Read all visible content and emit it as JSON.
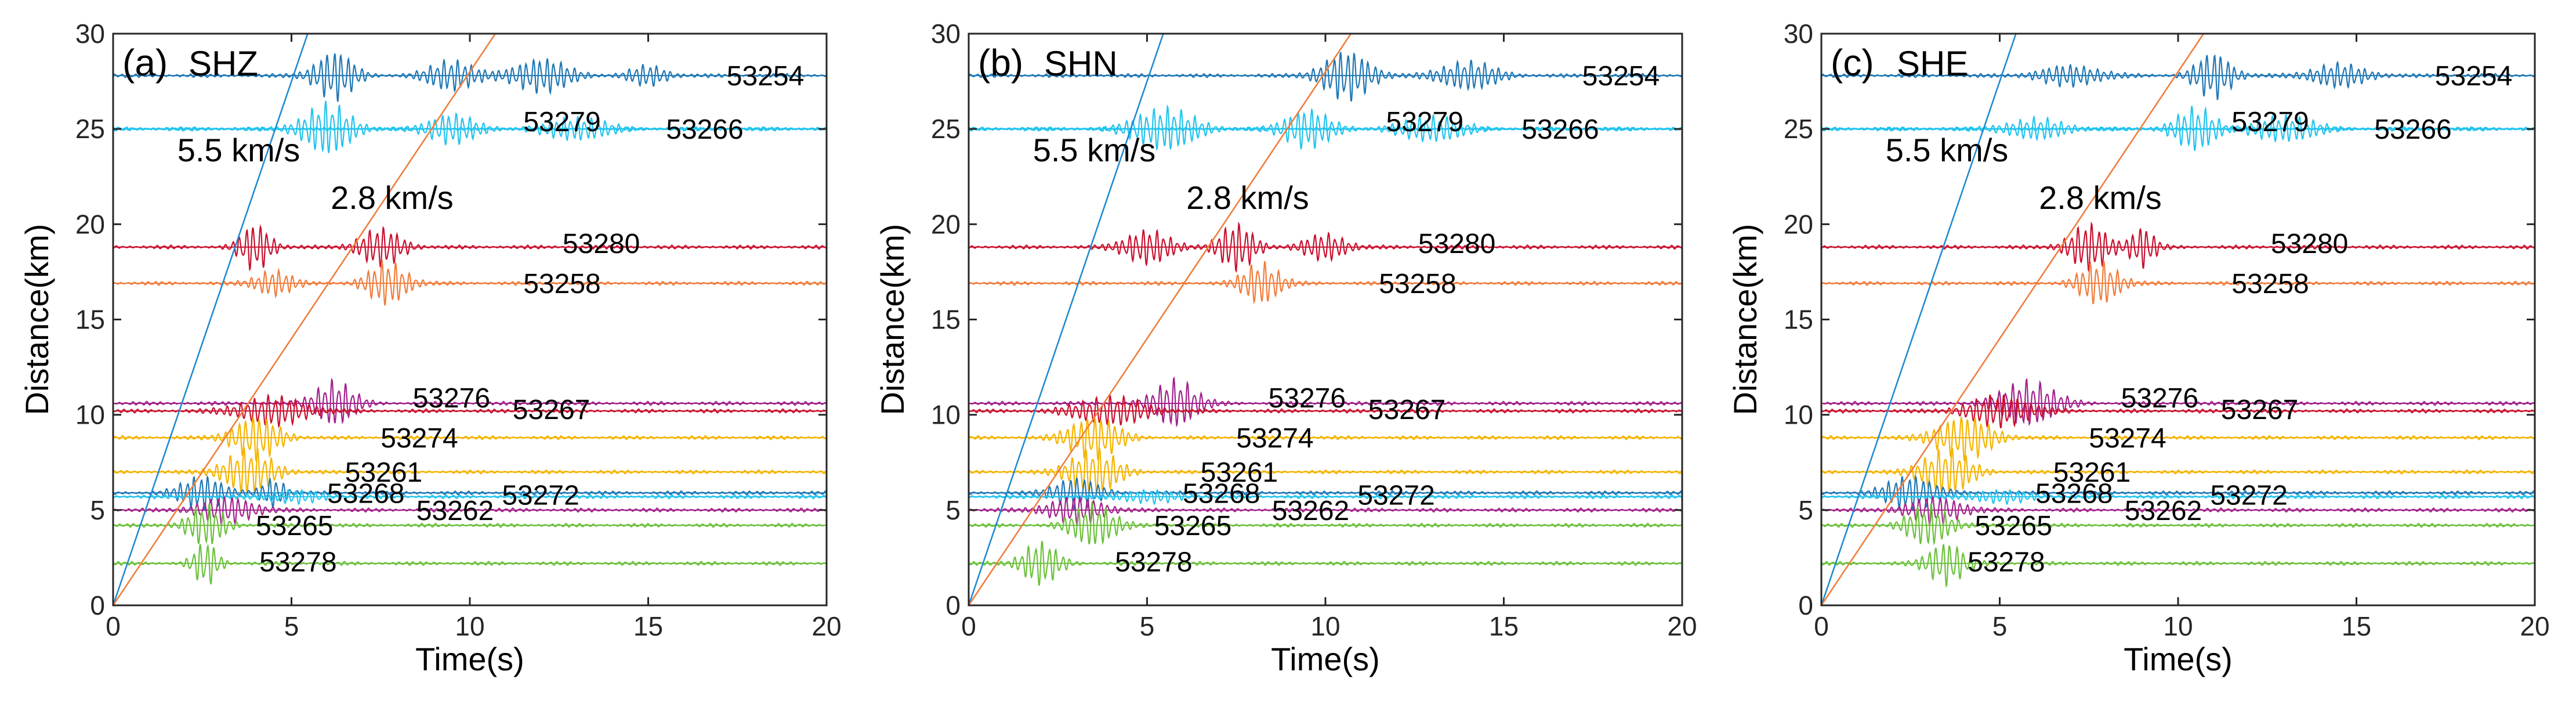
{
  "figure": {
    "colors": {
      "blue": "#1f77b4",
      "cyan": "#23c4ee",
      "crimson": "#c8102e",
      "orange": "#f07d3c",
      "purple": "#a2218c",
      "yellow": "#f4b400",
      "green": "#6cc03c",
      "line_p": "#1f8bd0",
      "line_s": "#f07d3c",
      "axis": "#262626"
    }
  },
  "chart_data": [
    {
      "type": "line",
      "panel_label": "(a)",
      "component": "SHZ",
      "xlabel": "Time(s)",
      "ylabel": "Distance(km)",
      "xlim": [
        0,
        20
      ],
      "ylim": [
        0,
        30
      ],
      "xticks": [
        "0",
        "5",
        "10",
        "15",
        "20"
      ],
      "yticks": [
        "0",
        "5",
        "10",
        "15",
        "20",
        "25",
        "30"
      ],
      "velocity_lines": [
        {
          "label": "5.5 km/s",
          "velocity_km_s": 5.5,
          "color": "line_p"
        },
        {
          "label": "2.8 km/s",
          "velocity_km_s": 2.8,
          "color": "line_s"
        }
      ],
      "stations": [
        {
          "id": "53254",
          "distance_km": 27.8,
          "color": "blue",
          "label_time_s": 17.2,
          "label_distance_km": 27.8,
          "packets": [
            {
              "t": 6.2,
              "w": 1.3,
              "a": 0.85
            },
            {
              "t": 9.5,
              "w": 1.5,
              "a": 0.55
            },
            {
              "t": 12.0,
              "w": 1.8,
              "a": 0.6
            },
            {
              "t": 15.0,
              "w": 1.2,
              "a": 0.35
            }
          ]
        },
        {
          "id": "53279",
          "distance_km": 25.0,
          "color": "cyan",
          "label_time_s": 11.5,
          "label_distance_km": 25.4,
          "packets": [
            {
              "t": 6.0,
              "w": 1.6,
              "a": 0.9
            },
            {
              "t": 9.5,
              "w": 1.5,
              "a": 0.55
            }
          ]
        },
        {
          "id": "53266",
          "distance_km": 25.0,
          "color": "cyan",
          "label_time_s": 15.5,
          "label_distance_km": 25.0,
          "packets": [
            {
              "t": 13.0,
              "w": 2.0,
              "a": 0.4
            }
          ]
        },
        {
          "id": "53280",
          "distance_km": 18.8,
          "color": "crimson",
          "label_time_s": 12.6,
          "label_distance_km": 19.0,
          "packets": [
            {
              "t": 4.0,
              "w": 1.0,
              "a": 0.8
            },
            {
              "t": 7.5,
              "w": 1.4,
              "a": 0.65
            }
          ]
        },
        {
          "id": "53258",
          "distance_km": 16.9,
          "color": "orange",
          "label_time_s": 11.5,
          "label_distance_km": 16.9,
          "packets": [
            {
              "t": 4.5,
              "w": 1.2,
              "a": 0.45
            },
            {
              "t": 7.7,
              "w": 1.3,
              "a": 0.75
            }
          ]
        },
        {
          "id": "53276",
          "distance_km": 10.6,
          "color": "purple",
          "label_time_s": 8.4,
          "label_distance_km": 10.9,
          "packets": [
            {
              "t": 6.2,
              "w": 1.3,
              "a": 0.8
            }
          ]
        },
        {
          "id": "53267",
          "distance_km": 10.2,
          "color": "crimson",
          "label_time_s": 11.2,
          "label_distance_km": 10.3,
          "packets": [
            {
              "t": 4.5,
              "w": 2.2,
              "a": 0.5
            }
          ]
        },
        {
          "id": "53274",
          "distance_km": 8.8,
          "color": "yellow",
          "label_time_s": 7.5,
          "label_distance_km": 8.8,
          "packets": [
            {
              "t": 4.0,
              "w": 1.5,
              "a": 0.75
            }
          ]
        },
        {
          "id": "53261",
          "distance_km": 7.0,
          "color": "yellow",
          "label_time_s": 6.5,
          "label_distance_km": 7.0,
          "packets": [
            {
              "t": 3.8,
              "w": 1.6,
              "a": 0.8
            }
          ]
        },
        {
          "id": "53268",
          "distance_km": 5.9,
          "color": "blue",
          "label_time_s": 6.0,
          "label_distance_km": 5.9,
          "packets": [
            {
              "t": 2.5,
              "w": 1.4,
              "a": 0.6
            },
            {
              "t": 4.5,
              "w": 0.8,
              "a": 0.5
            }
          ]
        },
        {
          "id": "53272",
          "distance_km": 5.7,
          "color": "cyan",
          "label_time_s": 10.9,
          "label_distance_km": 5.8,
          "packets": [
            {
              "t": 5.0,
              "w": 2.0,
              "a": 0.2
            }
          ]
        },
        {
          "id": "53262",
          "distance_km": 5.0,
          "color": "purple",
          "label_time_s": 8.5,
          "label_distance_km": 5.0,
          "packets": [
            {
              "t": 3.2,
              "w": 1.8,
              "a": 0.45
            }
          ]
        },
        {
          "id": "53265",
          "distance_km": 4.2,
          "color": "green",
          "label_time_s": 4.0,
          "label_distance_km": 4.2,
          "packets": [
            {
              "t": 2.6,
              "w": 1.2,
              "a": 0.7
            }
          ]
        },
        {
          "id": "53278",
          "distance_km": 2.2,
          "color": "green",
          "label_time_s": 4.1,
          "label_distance_km": 2.3,
          "packets": [
            {
              "t": 2.6,
              "w": 0.8,
              "a": 0.75
            }
          ]
        }
      ]
    },
    {
      "type": "line",
      "panel_label": "(b)",
      "component": "SHN",
      "xlabel": "Time(s)",
      "ylabel": "Distance(km)",
      "xlim": [
        0,
        20
      ],
      "ylim": [
        0,
        30
      ],
      "xticks": [
        "0",
        "5",
        "10",
        "15",
        "20"
      ],
      "yticks": [
        "0",
        "5",
        "10",
        "15",
        "20",
        "25",
        "30"
      ],
      "velocity_lines": [
        {
          "label": "5.5 km/s",
          "velocity_km_s": 5.5,
          "color": "line_p"
        },
        {
          "label": "2.8 km/s",
          "velocity_km_s": 2.8,
          "color": "line_s"
        }
      ],
      "stations": [
        {
          "id": "53254",
          "distance_km": 27.8,
          "color": "blue",
          "label_time_s": 17.2,
          "label_distance_km": 27.8,
          "packets": [
            {
              "t": 10.6,
              "w": 1.6,
              "a": 0.85
            },
            {
              "t": 14.0,
              "w": 1.8,
              "a": 0.5
            }
          ]
        },
        {
          "id": "53279",
          "distance_km": 25.0,
          "color": "cyan",
          "label_time_s": 11.7,
          "label_distance_km": 25.4,
          "packets": [
            {
              "t": 5.5,
              "w": 2.0,
              "a": 0.75
            },
            {
              "t": 9.5,
              "w": 1.5,
              "a": 0.7
            }
          ]
        },
        {
          "id": "53266",
          "distance_km": 25.0,
          "color": "cyan",
          "label_time_s": 15.5,
          "label_distance_km": 25.0,
          "packets": [
            {
              "t": 13.0,
              "w": 2.0,
              "a": 0.45
            }
          ]
        },
        {
          "id": "53280",
          "distance_km": 18.8,
          "color": "crimson",
          "label_time_s": 12.6,
          "label_distance_km": 19.0,
          "packets": [
            {
              "t": 5.0,
              "w": 1.5,
              "a": 0.6
            },
            {
              "t": 7.5,
              "w": 1.2,
              "a": 0.8
            },
            {
              "t": 10.0,
              "w": 1.4,
              "a": 0.45
            }
          ]
        },
        {
          "id": "53258",
          "distance_km": 16.9,
          "color": "orange",
          "label_time_s": 11.5,
          "label_distance_km": 16.9,
          "packets": [
            {
              "t": 8.2,
              "w": 1.2,
              "a": 0.75
            }
          ]
        },
        {
          "id": "53276",
          "distance_km": 10.6,
          "color": "purple",
          "label_time_s": 8.4,
          "label_distance_km": 10.9,
          "packets": [
            {
              "t": 5.8,
              "w": 1.4,
              "a": 0.85
            }
          ]
        },
        {
          "id": "53267",
          "distance_km": 10.2,
          "color": "crimson",
          "label_time_s": 11.2,
          "label_distance_km": 10.3,
          "packets": [
            {
              "t": 4.0,
              "w": 2.2,
              "a": 0.5
            }
          ]
        },
        {
          "id": "53274",
          "distance_km": 8.8,
          "color": "yellow",
          "label_time_s": 7.5,
          "label_distance_km": 8.8,
          "packets": [
            {
              "t": 3.5,
              "w": 1.6,
              "a": 0.75
            }
          ]
        },
        {
          "id": "53261",
          "distance_km": 7.0,
          "color": "yellow",
          "label_time_s": 6.5,
          "label_distance_km": 7.0,
          "packets": [
            {
              "t": 3.5,
              "w": 1.6,
              "a": 0.8
            }
          ]
        },
        {
          "id": "53268",
          "distance_km": 5.9,
          "color": "blue",
          "label_time_s": 6.0,
          "label_distance_km": 5.9,
          "packets": [
            {
              "t": 3.0,
              "w": 1.4,
              "a": 0.55
            }
          ]
        },
        {
          "id": "53272",
          "distance_km": 5.7,
          "color": "cyan",
          "label_time_s": 10.9,
          "label_distance_km": 5.8,
          "packets": [
            {
              "t": 5.0,
              "w": 2.0,
              "a": 0.2
            }
          ]
        },
        {
          "id": "53262",
          "distance_km": 5.0,
          "color": "purple",
          "label_time_s": 8.5,
          "label_distance_km": 5.0,
          "packets": [
            {
              "t": 3.0,
              "w": 1.8,
              "a": 0.45
            }
          ]
        },
        {
          "id": "53265",
          "distance_km": 4.2,
          "color": "green",
          "label_time_s": 5.2,
          "label_distance_km": 4.2,
          "packets": [
            {
              "t": 3.5,
              "w": 1.4,
              "a": 0.75
            }
          ]
        },
        {
          "id": "53278",
          "distance_km": 2.2,
          "color": "green",
          "label_time_s": 4.1,
          "label_distance_km": 2.3,
          "packets": [
            {
              "t": 2.0,
              "w": 1.2,
              "a": 0.75
            }
          ]
        }
      ]
    },
    {
      "type": "line",
      "panel_label": "(c)",
      "component": "SHE",
      "xlabel": "Time(s)",
      "ylabel": "Distance(km)",
      "xlim": [
        0,
        20
      ],
      "ylim": [
        0,
        30
      ],
      "xticks": [
        "0",
        "5",
        "10",
        "15",
        "20"
      ],
      "yticks": [
        "0",
        "5",
        "10",
        "15",
        "20",
        "25",
        "30"
      ],
      "velocity_lines": [
        {
          "label": "5.5 km/s",
          "velocity_km_s": 5.5,
          "color": "line_p"
        },
        {
          "label": "2.8 km/s",
          "velocity_km_s": 2.8,
          "color": "line_s"
        }
      ],
      "stations": [
        {
          "id": "53254",
          "distance_km": 27.8,
          "color": "blue",
          "label_time_s": 17.2,
          "label_distance_km": 27.8,
          "packets": [
            {
              "t": 7.0,
              "w": 2.0,
              "a": 0.35
            },
            {
              "t": 11.0,
              "w": 1.2,
              "a": 0.8
            },
            {
              "t": 14.5,
              "w": 1.8,
              "a": 0.4
            }
          ]
        },
        {
          "id": "53279",
          "distance_km": 25.0,
          "color": "cyan",
          "label_time_s": 11.5,
          "label_distance_km": 25.4,
          "packets": [
            {
              "t": 6.0,
              "w": 2.0,
              "a": 0.35
            },
            {
              "t": 10.5,
              "w": 1.4,
              "a": 0.75
            }
          ]
        },
        {
          "id": "53266",
          "distance_km": 25.0,
          "color": "cyan",
          "label_time_s": 15.5,
          "label_distance_km": 25.0,
          "packets": [
            {
              "t": 13.0,
              "w": 2.0,
              "a": 0.45
            }
          ]
        },
        {
          "id": "53280",
          "distance_km": 18.8,
          "color": "crimson",
          "label_time_s": 12.6,
          "label_distance_km": 19.0,
          "packets": [
            {
              "t": 7.5,
              "w": 1.3,
              "a": 0.8
            },
            {
              "t": 9.0,
              "w": 0.8,
              "a": 0.7
            }
          ]
        },
        {
          "id": "53258",
          "distance_km": 16.9,
          "color": "orange",
          "label_time_s": 11.5,
          "label_distance_km": 16.9,
          "packets": [
            {
              "t": 7.8,
              "w": 1.3,
              "a": 0.75
            }
          ]
        },
        {
          "id": "53276",
          "distance_km": 10.6,
          "color": "purple",
          "label_time_s": 8.4,
          "label_distance_km": 10.9,
          "packets": [
            {
              "t": 5.8,
              "w": 1.8,
              "a": 0.8
            }
          ]
        },
        {
          "id": "53267",
          "distance_km": 10.2,
          "color": "crimson",
          "label_time_s": 11.2,
          "label_distance_km": 10.3,
          "packets": [
            {
              "t": 5.0,
              "w": 2.0,
              "a": 0.55
            }
          ]
        },
        {
          "id": "53274",
          "distance_km": 8.8,
          "color": "yellow",
          "label_time_s": 7.5,
          "label_distance_km": 8.8,
          "packets": [
            {
              "t": 4.0,
              "w": 1.8,
              "a": 0.75
            }
          ]
        },
        {
          "id": "53261",
          "distance_km": 7.0,
          "color": "yellow",
          "label_time_s": 6.5,
          "label_distance_km": 7.0,
          "packets": [
            {
              "t": 3.5,
              "w": 1.6,
              "a": 0.8
            }
          ]
        },
        {
          "id": "53268",
          "distance_km": 5.9,
          "color": "blue",
          "label_time_s": 6.0,
          "label_distance_km": 5.9,
          "packets": [
            {
              "t": 2.5,
              "w": 1.6,
              "a": 0.6
            }
          ]
        },
        {
          "id": "53272",
          "distance_km": 5.7,
          "color": "cyan",
          "label_time_s": 10.9,
          "label_distance_km": 5.8,
          "packets": [
            {
              "t": 5.0,
              "w": 2.0,
              "a": 0.2
            }
          ]
        },
        {
          "id": "53262",
          "distance_km": 5.0,
          "color": "purple",
          "label_time_s": 8.5,
          "label_distance_km": 5.0,
          "packets": [
            {
              "t": 3.2,
              "w": 1.8,
              "a": 0.45
            }
          ]
        },
        {
          "id": "53265",
          "distance_km": 4.2,
          "color": "green",
          "label_time_s": 4.3,
          "label_distance_km": 4.2,
          "packets": [
            {
              "t": 3.0,
              "w": 1.4,
              "a": 0.7
            }
          ]
        },
        {
          "id": "53278",
          "distance_km": 2.2,
          "color": "green",
          "label_time_s": 4.1,
          "label_distance_km": 2.3,
          "packets": [
            {
              "t": 3.5,
              "w": 1.2,
              "a": 0.75
            }
          ]
        }
      ]
    }
  ]
}
